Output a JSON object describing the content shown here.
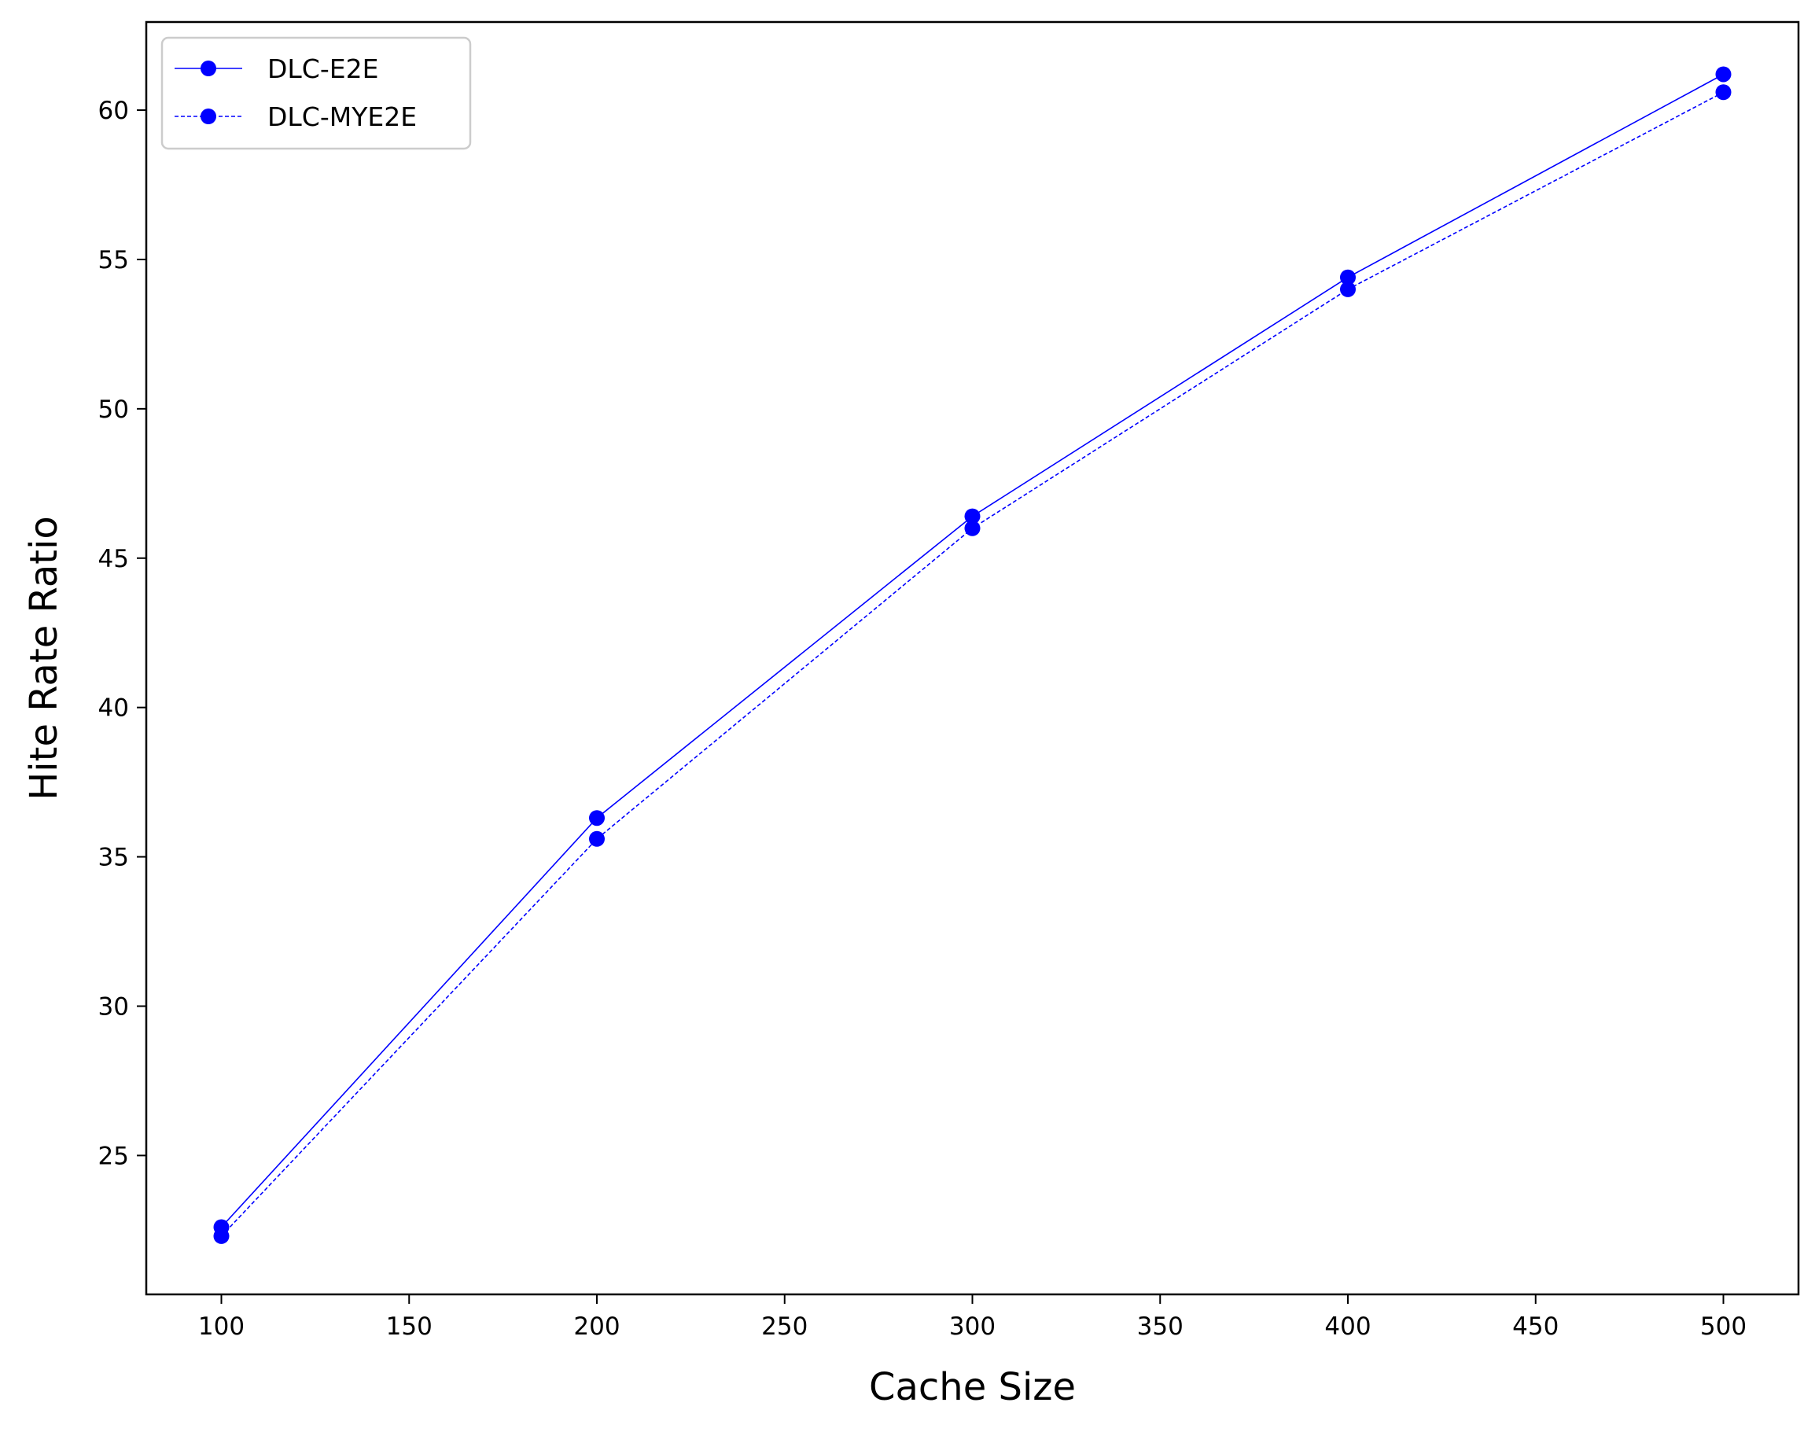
{
  "chart_data": {
    "type": "line",
    "title": "",
    "xlabel": "Cache Size",
    "ylabel": "Hite Rate Ratio",
    "xlim": [
      80,
      520
    ],
    "ylim": [
      20.35,
      62.95
    ],
    "xticks": [
      100,
      150,
      200,
      250,
      300,
      350,
      400,
      450,
      500
    ],
    "yticks": [
      25,
      30,
      35,
      40,
      45,
      50,
      55,
      60
    ],
    "grid": false,
    "legend_position": "top-left",
    "x": [
      100,
      200,
      300,
      400,
      500
    ],
    "series": [
      {
        "name": "DLC-E2E",
        "values": [
          22.6,
          36.3,
          46.4,
          54.4,
          61.2
        ],
        "color": "#0000ff",
        "line_style": "solid",
        "marker": "circle"
      },
      {
        "name": "DLC-MYE2E",
        "values": [
          22.3,
          35.6,
          46.0,
          54.0,
          60.6
        ],
        "color": "#0000ff",
        "line_style": "dashed",
        "marker": "circle"
      }
    ]
  }
}
